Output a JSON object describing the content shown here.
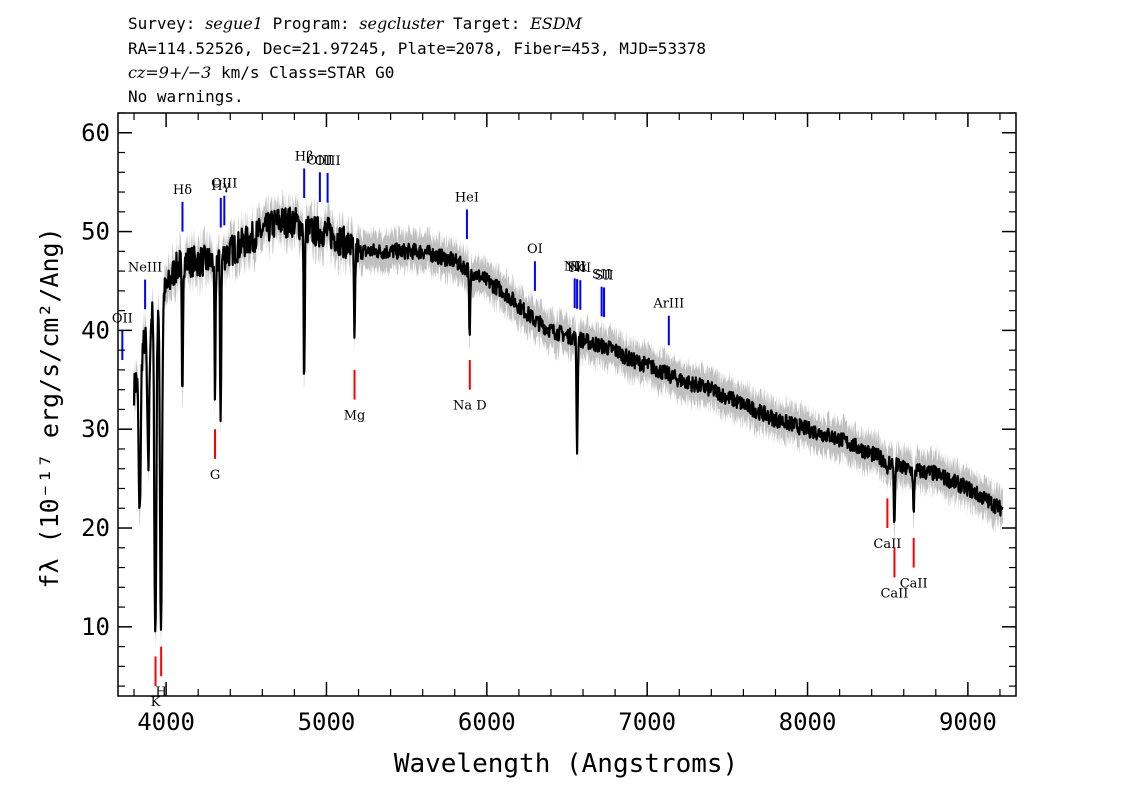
{
  "header": {
    "survey_label": "Survey:",
    "survey_value": "segue1",
    "program_label": "Program:",
    "program_value": "segcluster",
    "target_label": "Target:",
    "target_value": "ESDM",
    "line2": "RA=114.52526, Dec=21.97245, Plate=2078, Fiber=453, MJD=53378",
    "cz_value": "cz=9+/−3",
    "cz_rest": " km/s Class=STAR G0",
    "line4": "No warnings."
  },
  "colors": {
    "spectrum": "#000000",
    "error_band": "#c0c0c0",
    "emission": "#0000ff",
    "absorption": "#ff0000",
    "axes": "#000000"
  },
  "chart_data": {
    "type": "line",
    "xlabel": "Wavelength (Angstroms)",
    "ylabel": "fλ (10⁻¹⁷ erg/s/cm²/Ang)",
    "xlim": [
      3700,
      9300
    ],
    "ylim": [
      3,
      62
    ],
    "xticks": [
      4000,
      5000,
      6000,
      7000,
      8000,
      9000
    ],
    "yticks": [
      10,
      20,
      30,
      40,
      50,
      60
    ],
    "grid": false,
    "legend": "none",
    "continuum": {
      "x": [
        3800,
        3850,
        3900,
        3950,
        4000,
        4050,
        4100,
        4200,
        4300,
        4400,
        4500,
        4600,
        4700,
        4800,
        4900,
        5000,
        5100,
        5200,
        5300,
        5400,
        5500,
        5600,
        5700,
        5800,
        5900,
        6000,
        6100,
        6200,
        6300,
        6400,
        6500,
        6600,
        6700,
        6800,
        6900,
        7000,
        7200,
        7400,
        7600,
        7800,
        8000,
        8200,
        8400,
        8600,
        8800,
        9000,
        9100,
        9200
      ],
      "y": [
        34,
        38,
        41,
        44,
        44,
        46,
        47,
        47,
        47,
        48,
        49,
        50,
        51,
        51,
        50,
        50,
        49,
        48,
        48,
        48,
        48,
        48,
        47.5,
        47,
        46,
        45,
        44,
        42.5,
        41,
        40,
        39.5,
        39,
        38.5,
        38,
        37,
        36.5,
        35,
        34,
        32.5,
        31,
        30,
        29,
        27.5,
        26,
        25.5,
        24,
        23,
        22
      ]
    },
    "absorption_features": [
      {
        "x": 3835,
        "y": 21
      },
      {
        "x": 3889,
        "y": 26
      },
      {
        "x": 3933,
        "y": 9
      },
      {
        "x": 3968,
        "y": 10
      },
      {
        "x": 4101,
        "y": 33
      },
      {
        "x": 4305,
        "y": 32
      },
      {
        "x": 4340,
        "y": 31
      },
      {
        "x": 4861,
        "y": 34
      },
      {
        "x": 5175,
        "y": 38
      },
      {
        "x": 5893,
        "y": 39
      },
      {
        "x": 6563,
        "y": 28
      },
      {
        "x": 8498,
        "y": 25
      },
      {
        "x": 8542,
        "y": 20
      },
      {
        "x": 8662,
        "y": 21
      }
    ],
    "emission_lines": [
      {
        "label": "OII",
        "x": 3727
      },
      {
        "label": "NeIII",
        "x": 3869
      },
      {
        "label": "Hδ",
        "x": 4102
      },
      {
        "label": "Hγ",
        "x": 4341
      },
      {
        "label": "OIII",
        "x": 4363
      },
      {
        "label": "Hβ",
        "x": 4861
      },
      {
        "label": "OIII",
        "x": 4959
      },
      {
        "label": "OIII",
        "x": 5007
      },
      {
        "label": "HeI",
        "x": 5876
      },
      {
        "label": "OI",
        "x": 6300
      },
      {
        "label": "NII",
        "x": 6548
      },
      {
        "label": "Hα",
        "x": 6563
      },
      {
        "label": "NII",
        "x": 6583
      },
      {
        "label": "SII",
        "x": 6716
      },
      {
        "label": "SII",
        "x": 6731
      },
      {
        "label": "ArIII",
        "x": 7135
      }
    ],
    "absorption_lines": [
      {
        "label": "K",
        "x": 3934
      },
      {
        "label": "H",
        "x": 3969
      },
      {
        "label": "G",
        "x": 4305
      },
      {
        "label": "Mg",
        "x": 5175
      },
      {
        "label": "Na D",
        "x": 5894
      },
      {
        "label": "CaII",
        "x": 8498
      },
      {
        "label": "CaII",
        "x": 8542
      },
      {
        "label": "CaII",
        "x": 8662
      }
    ]
  }
}
